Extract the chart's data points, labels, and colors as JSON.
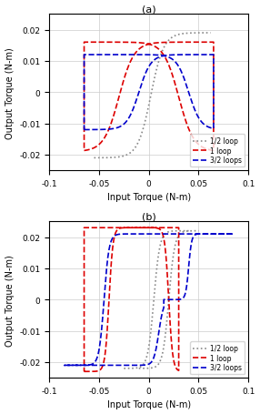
{
  "title_a": "(a)",
  "title_b": "(b)",
  "xlabel": "Input Torque (N-m)",
  "ylabel": "Output Torque (N-m)",
  "xlim": [
    -0.1,
    0.1
  ],
  "ylim": [
    -0.025,
    0.025
  ],
  "xticks": [
    -0.1,
    -0.05,
    0,
    0.05,
    0.1
  ],
  "yticks": [
    -0.02,
    -0.01,
    0,
    0.01,
    0.02
  ],
  "legend_labels": [
    "1/2 loop",
    "1 loop",
    "3/2 loops"
  ],
  "colors": [
    "#888888",
    "#dd0000",
    "#0000cc"
  ],
  "grid_color": "#cccccc",
  "background": "#ffffff",
  "figsize": [
    2.86,
    4.56
  ],
  "dpi": 100
}
